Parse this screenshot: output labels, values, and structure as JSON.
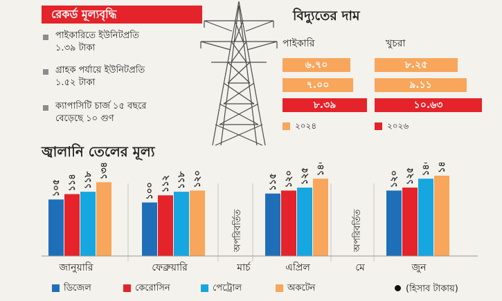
{
  "banner": {
    "title": "রেকর্ড মূল্যবৃদ্ধি"
  },
  "facts": [
    {
      "line1": "পাইকারিতে ইউনিটপ্রতি",
      "line2": "১.৩৯ টাকা"
    },
    {
      "line1": "গ্রাহক পর্যায়ে ইউনিটপ্রতি",
      "line2": "১.৫২ টাকা"
    },
    {
      "line1": "ক্যাপাসিটি চার্জ ১৫ বছরে",
      "line2": "বেড়েছে ১০ গুণ"
    }
  ],
  "colors": {
    "diesel": "#1f6fb8",
    "kerosene": "#e4232a",
    "petrol": "#16a6e0",
    "octane": "#f7a65b",
    "y2024": "#f7a65b",
    "y2026": "#e4232a",
    "banner": "#e4232a"
  },
  "electricity": {
    "title": "বিদ্যুতের দাম",
    "columns": [
      "পাইকারি",
      "খুচরা"
    ],
    "legend": [
      {
        "label": "২০২৪",
        "color_key": "y2024"
      },
      {
        "label": "২০২৬",
        "color_key": "y2026"
      }
    ]
  },
  "fuel": {
    "title": "জ্বালানি তেলের মূল্য",
    "note": "(হিসাব টাকায়)",
    "series_labels": [
      "ডিজেল",
      "কেরোসিন",
      "পেট্রোল",
      "অকটেন"
    ],
    "unchanged_label": "অপরিবর্তিত"
  },
  "chart_data": [
    {
      "type": "bar",
      "title": "বিদ্যুতের দাম",
      "categories": [
        "পাইকারি",
        "খুচরা"
      ],
      "series": [
        {
          "name": "২০২৪",
          "values": [
            6.7,
            8.25
          ],
          "labels": [
            "৬.৭০",
            "৮.২৫"
          ],
          "color": "#f7a65b"
        },
        {
          "name": "",
          "values": [
            7.0,
            9.11
          ],
          "labels": [
            "৭.০০",
            "৯.১১"
          ],
          "color": "#f7a65b"
        },
        {
          "name": "২০২৬",
          "values": [
            8.39,
            10.63
          ],
          "labels": [
            "৮.৩৯",
            "১০.৬৩"
          ],
          "color": "#e4232a"
        }
      ]
    },
    {
      "type": "bar",
      "title": "জ্বালানি তেলের মূল্য",
      "categories": [
        "জানুয়ারি",
        "ফেব্রুয়ারি",
        "মার্চ",
        "এপ্রিল",
        "মে",
        "জুন"
      ],
      "series": [
        {
          "name": "ডিজেল",
          "values": [
            105,
            100,
            null,
            115,
            null,
            120
          ],
          "labels": [
            "১০৫",
            "১০০",
            "",
            "১১৫",
            "",
            "১২০"
          ]
        },
        {
          "name": "কেরোসিন",
          "values": [
            114,
            112,
            null,
            120,
            null,
            125
          ],
          "labels": [
            "১১৪",
            "১১২",
            "",
            "১২০",
            "",
            "১২৫"
          ]
        },
        {
          "name": "পেট্রোল",
          "values": [
            118,
            118,
            null,
            125,
            null,
            140
          ],
          "labels": [
            "১১৮",
            "১১৮",
            "",
            "১২৫",
            "",
            "১৪০"
          ]
        },
        {
          "name": "অকটেন",
          "values": [
            134,
            120,
            null,
            140,
            null,
            145
          ],
          "labels": [
            "১৩৪",
            "১২০",
            "",
            "১৪০",
            "",
            "১৪৫"
          ]
        }
      ],
      "unchanged": [
        "মার্চ",
        "মে"
      ]
    }
  ]
}
